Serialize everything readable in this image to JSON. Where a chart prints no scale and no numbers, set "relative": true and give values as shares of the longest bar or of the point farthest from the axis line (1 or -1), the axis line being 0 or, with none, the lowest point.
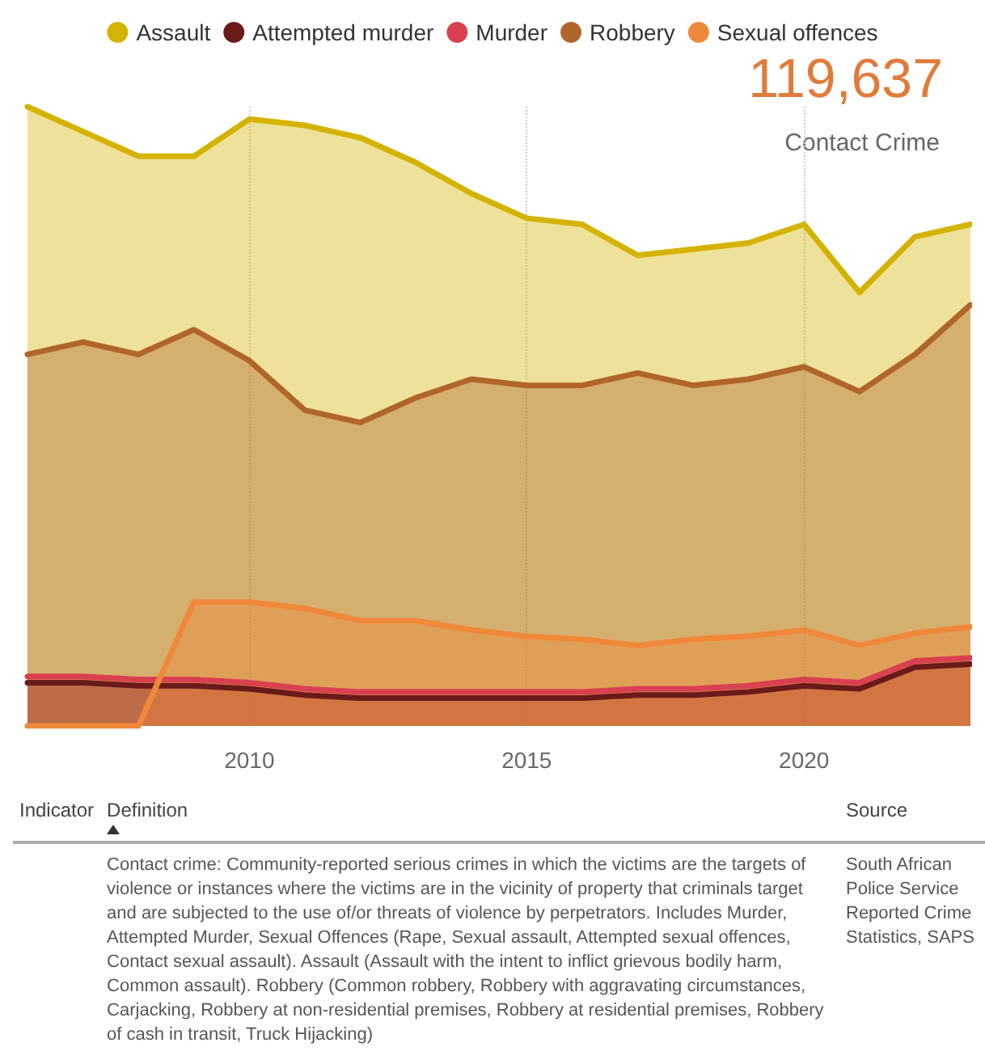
{
  "chart_data": {
    "type": "area",
    "relative": true,
    "x": [
      2006,
      2007,
      2008,
      2009,
      2010,
      2011,
      2012,
      2013,
      2014,
      2015,
      2016,
      2017,
      2018,
      2019,
      2020,
      2021,
      2022,
      2023
    ],
    "xlim": [
      2006,
      2023
    ],
    "xticks": [
      2010,
      2015,
      2020
    ],
    "grid": "x",
    "legend": "top",
    "marker": "none",
    "line_style": "solid",
    "series": [
      {
        "name": "Assault",
        "color": "#d4b300",
        "values": [
          1.0,
          0.96,
          0.92,
          0.92,
          0.98,
          0.97,
          0.95,
          0.91,
          0.86,
          0.82,
          0.81,
          0.76,
          0.77,
          0.78,
          0.81,
          0.7,
          0.79,
          0.81
        ]
      },
      {
        "name": "Attempted murder",
        "color": "#6b1a1a",
        "values": [
          0.07,
          0.07,
          0.065,
          0.065,
          0.06,
          0.05,
          0.045,
          0.045,
          0.045,
          0.045,
          0.045,
          0.05,
          0.05,
          0.055,
          0.065,
          0.06,
          0.095,
          0.1
        ]
      },
      {
        "name": "Murder",
        "color": "#d94050",
        "values": [
          0.08,
          0.08,
          0.075,
          0.075,
          0.07,
          0.06,
          0.055,
          0.055,
          0.055,
          0.055,
          0.055,
          0.06,
          0.06,
          0.065,
          0.075,
          0.07,
          0.105,
          0.11
        ]
      },
      {
        "name": "Robbery",
        "color": "#b0652a",
        "values": [
          0.6,
          0.62,
          0.6,
          0.64,
          0.59,
          0.51,
          0.49,
          0.53,
          0.56,
          0.55,
          0.55,
          0.57,
          0.55,
          0.56,
          0.58,
          0.54,
          0.6,
          0.68
        ]
      },
      {
        "name": "Sexual offences",
        "color": "#f0883a",
        "values": [
          0,
          0,
          0,
          0.2,
          0.2,
          0.19,
          0.17,
          0.17,
          0.155,
          0.145,
          0.14,
          0.13,
          0.14,
          0.145,
          0.155,
          0.13,
          0.15,
          0.16
        ]
      }
    ],
    "annotations": [
      "119,637",
      "Contact Crime",
      "Indicator",
      "Definition",
      "Source",
      "Contact crime: Community-reported serious crimes in which the victims are the targets of violence or instances where the victims are in the vicinity of property that criminals target and are subjected to the use of/or threats of violence by perpetrators. Includes Murder, Attempted Murder, Sexual Offences (Rape, Sexual assault, Attempted sexual offences, Contact sexual assault). Assault (Assault with the intent to inflict grievous bodily harm, Common assault). Robbery (Common robbery, Robbery with aggravating circumstances, Carjacking, Robbery at non-residential premises, Robbery at residential premises, Robbery of cash in transit, Truck Hijacking)",
      "South African Police Service Reported Crime Statistics, SAPS"
    ]
  }
}
